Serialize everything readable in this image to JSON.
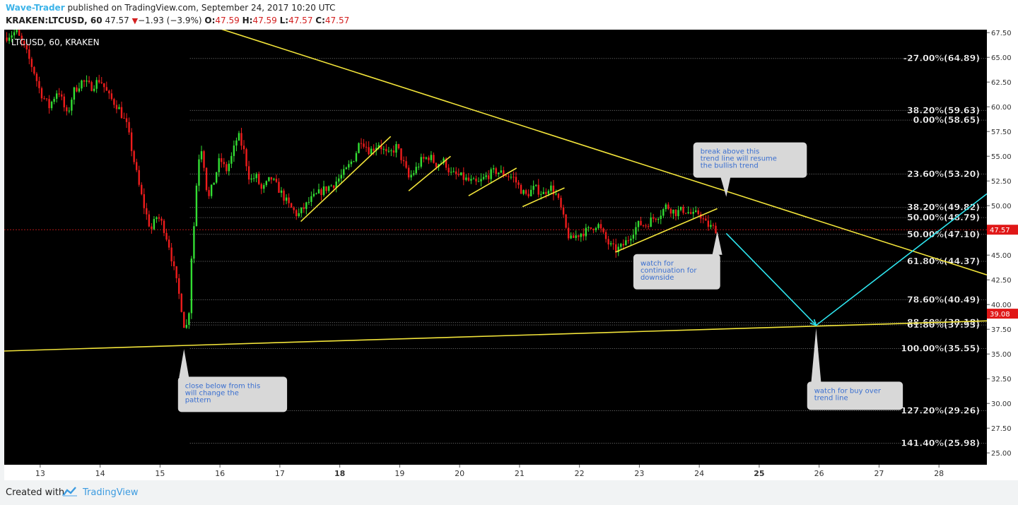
{
  "header": {
    "author": "Wave-Trader",
    "published_text": " published on TradingView.com, September 24, 2017 10:20 UTC",
    "symbol": "KRAKEN:LTCUSD, 60",
    "last": "47.57",
    "change": "−1.93 (−3.9%)",
    "open_label": "O:",
    "open": "47.59",
    "high_label": "H:",
    "high": "47.59",
    "low_label": "L:",
    "low": "47.57",
    "close_label": "C:",
    "close": "47.57"
  },
  "chart_label": "LTCUSD, 60, KRAKEN",
  "footer": {
    "created_with": "Created with",
    "brand": "TradingView"
  },
  "colors": {
    "background": "#000000",
    "up": "#33dd33",
    "down": "#ee1c1c",
    "trend": "#f2e43a",
    "projection": "#2ee6f0",
    "price_tag": "#e01818",
    "annotation_bg": "#d8d8d8",
    "annotation_text": "#3a6fd0"
  },
  "chart_data": {
    "type": "candlestick",
    "symbol": "LTCUSD",
    "interval": "60",
    "exchange": "KRAKEN",
    "x_ticks": [
      "13",
      "14",
      "15",
      "16",
      "17",
      "18",
      "19",
      "20",
      "21",
      "22",
      "23",
      "24",
      "25",
      "26",
      "27",
      "28"
    ],
    "y_ticks": [
      "67.50",
      "65.00",
      "62.50",
      "60.00",
      "57.50",
      "55.00",
      "52.50",
      "50.00",
      "47.50",
      "45.00",
      "42.50",
      "40.00",
      "37.50",
      "35.00",
      "32.50",
      "30.00",
      "27.50",
      "25.00"
    ],
    "ylim": [
      23.8,
      67.8
    ],
    "xlim": [
      12.4,
      28.8
    ],
    "last_price": "47.57",
    "second_tag": "39.08",
    "last_price_value": 47.57,
    "second_tag_value": 39.08,
    "path_points": [
      [
        12.4,
        67.0
      ],
      [
        12.6,
        67.6
      ],
      [
        12.75,
        65.8
      ],
      [
        12.9,
        63.5
      ],
      [
        13.0,
        61.5
      ],
      [
        13.15,
        60.0
      ],
      [
        13.3,
        61.8
      ],
      [
        13.45,
        59.0
      ],
      [
        13.55,
        61.5
      ],
      [
        13.7,
        62.6
      ],
      [
        13.85,
        62.0
      ],
      [
        14.0,
        62.8
      ],
      [
        14.15,
        61.0
      ],
      [
        14.3,
        60.0
      ],
      [
        14.45,
        58.0
      ],
      [
        14.55,
        55.0
      ],
      [
        14.65,
        52.0
      ],
      [
        14.75,
        49.5
      ],
      [
        14.85,
        47.5
      ],
      [
        14.95,
        49.0
      ],
      [
        15.05,
        48.0
      ],
      [
        15.15,
        46.0
      ],
      [
        15.25,
        43.0
      ],
      [
        15.35,
        40.0
      ],
      [
        15.42,
        37.2
      ],
      [
        15.48,
        39.0
      ],
      [
        15.52,
        44.5
      ],
      [
        15.58,
        49.0
      ],
      [
        15.63,
        54.5
      ],
      [
        15.7,
        56.0
      ],
      [
        15.8,
        50.5
      ],
      [
        15.9,
        52.5
      ],
      [
        16.0,
        54.8
      ],
      [
        16.1,
        53.5
      ],
      [
        16.2,
        55.0
      ],
      [
        16.3,
        57.2
      ],
      [
        16.4,
        55.5
      ],
      [
        16.5,
        52.5
      ],
      [
        16.6,
        53.0
      ],
      [
        16.7,
        51.5
      ],
      [
        16.85,
        52.8
      ],
      [
        17.0,
        51.5
      ],
      [
        17.15,
        50.0
      ],
      [
        17.3,
        49.0
      ],
      [
        17.5,
        50.5
      ],
      [
        17.7,
        51.5
      ],
      [
        17.9,
        52.2
      ],
      [
        18.1,
        53.5
      ],
      [
        18.25,
        55.0
      ],
      [
        18.35,
        56.8
      ],
      [
        18.5,
        55.5
      ],
      [
        18.65,
        56.3
      ],
      [
        18.8,
        55.0
      ],
      [
        18.95,
        56.0
      ],
      [
        19.05,
        54.5
      ],
      [
        19.15,
        52.8
      ],
      [
        19.25,
        53.5
      ],
      [
        19.35,
        54.5
      ],
      [
        19.5,
        55.0
      ],
      [
        19.6,
        54.2
      ],
      [
        19.75,
        54.5
      ],
      [
        19.85,
        53.2
      ],
      [
        20.0,
        53.0
      ],
      [
        20.15,
        52.5
      ],
      [
        20.3,
        52.2
      ],
      [
        20.45,
        53.0
      ],
      [
        20.6,
        53.5
      ],
      [
        20.75,
        53.2
      ],
      [
        20.9,
        52.8
      ],
      [
        21.0,
        51.8
      ],
      [
        21.1,
        51.0
      ],
      [
        21.25,
        51.8
      ],
      [
        21.4,
        51.2
      ],
      [
        21.5,
        52.0
      ],
      [
        21.62,
        51.0
      ],
      [
        21.7,
        49.5
      ],
      [
        21.78,
        47.5
      ],
      [
        21.85,
        46.5
      ],
      [
        21.95,
        47.0
      ],
      [
        22.05,
        47.3
      ],
      [
        22.15,
        47.5
      ],
      [
        22.3,
        48.2
      ],
      [
        22.4,
        47.0
      ],
      [
        22.5,
        46.0
      ],
      [
        22.6,
        45.5
      ],
      [
        22.7,
        45.8
      ],
      [
        22.8,
        46.5
      ],
      [
        22.9,
        47.5
      ],
      [
        23.0,
        48.2
      ],
      [
        23.1,
        48.0
      ],
      [
        23.2,
        48.6
      ],
      [
        23.35,
        49.2
      ],
      [
        23.45,
        50.0
      ],
      [
        23.6,
        49.3
      ],
      [
        23.75,
        49.6
      ],
      [
        23.9,
        49.0
      ],
      [
        24.0,
        49.3
      ],
      [
        24.1,
        48.2
      ],
      [
        24.2,
        47.8
      ],
      [
        24.3,
        47.57
      ]
    ],
    "trend_lines": [
      {
        "name": "descending resistance",
        "points": [
          [
            16.0,
            67.9
          ],
          [
            28.8,
            43.0
          ]
        ]
      },
      {
        "name": "ascending support",
        "points": [
          [
            12.4,
            35.3
          ],
          [
            28.8,
            38.35
          ]
        ]
      },
      {
        "name": "channel 1",
        "points": [
          [
            17.35,
            48.4
          ],
          [
            18.85,
            57.0
          ]
        ]
      },
      {
        "name": "channel 2",
        "points": [
          [
            19.15,
            51.5
          ],
          [
            19.85,
            55.0
          ]
        ]
      },
      {
        "name": "channel 3",
        "points": [
          [
            20.15,
            51.0
          ],
          [
            20.95,
            53.8
          ]
        ]
      },
      {
        "name": "channel 4",
        "points": [
          [
            21.05,
            49.9
          ],
          [
            21.75,
            51.8
          ]
        ]
      },
      {
        "name": "channel 5",
        "points": [
          [
            22.6,
            45.3
          ],
          [
            24.3,
            49.7
          ]
        ]
      }
    ],
    "projection_path": [
      [
        24.45,
        47.2
      ],
      [
        25.95,
        37.9
      ],
      [
        28.8,
        51.2
      ]
    ],
    "fib_levels": [
      {
        "label": "-27.00%(64.89)",
        "value": 64.89
      },
      {
        "label": "38.20%(59.63)",
        "value": 59.63
      },
      {
        "label": "0.00%(58.65)",
        "value": 58.65
      },
      {
        "label": "23.60%(53.20)",
        "value": 53.2
      },
      {
        "label": "38.20%(49.82)",
        "value": 49.82
      },
      {
        "label": "50.00%(48.79)",
        "value": 48.79
      },
      {
        "label": "50.00%(47.10)",
        "value": 47.1
      },
      {
        "label": "61.80%(44.37)",
        "value": 44.37
      },
      {
        "label": "78.60%(40.49)",
        "value": 40.49
      },
      {
        "label": "88.60%(38.18)",
        "value": 38.18
      },
      {
        "label": "61.80%(37.93)",
        "value": 37.93
      },
      {
        "label": "100.00%(35.55)",
        "value": 35.55
      },
      {
        "label": "127.20%(29.26)",
        "value": 29.26
      },
      {
        "label": "141.40%(25.98)",
        "value": 25.98
      }
    ],
    "annotations": [
      {
        "text": [
          "break above this",
          "trend line will resume",
          "the bullish trend"
        ],
        "anchor": [
          24.45,
          50.9
        ],
        "box": [
          23.9,
          56.4
        ],
        "pointer": "down"
      },
      {
        "text": [
          "watch for",
          "continuation for",
          "downside"
        ],
        "anchor": [
          24.3,
          47.4
        ],
        "box": [
          22.9,
          45.1
        ],
        "pointer": "up"
      },
      {
        "text": [
          "close below from this",
          "will change the",
          "pattern"
        ],
        "anchor": [
          15.4,
          35.5
        ],
        "box": [
          15.3,
          32.7
        ],
        "pointer": "up"
      },
      {
        "text": [
          "watch for buy over",
          "trend line"
        ],
        "anchor": [
          25.95,
          37.6
        ],
        "box": [
          25.8,
          32.2
        ],
        "pointer": "up"
      }
    ]
  }
}
